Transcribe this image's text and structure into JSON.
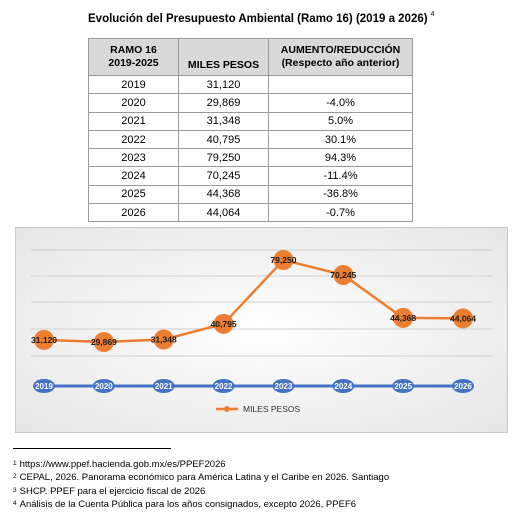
{
  "title": {
    "text": "Evolución del Presupuesto Ambiental (Ramo 16) (2019 a 2026)",
    "note_ref": "4"
  },
  "table": {
    "headers": [
      [
        "RAMO 16",
        "2019-2025"
      ],
      [
        "MILES PESOS"
      ],
      [
        "AUMENTO/REDUCCIÓN",
        "(Respecto año anterior)"
      ]
    ],
    "rows": [
      [
        "2019",
        "31,120",
        ""
      ],
      [
        "2020",
        "29,869",
        "-4.0%"
      ],
      [
        "2021",
        "31,348",
        "5.0%"
      ],
      [
        "2022",
        "40,795",
        "30.1%"
      ],
      [
        "2023",
        "79,250",
        "94.3%"
      ],
      [
        "2024",
        "70,245",
        "-11.4%"
      ],
      [
        "2025",
        "44,368",
        "-36.8%"
      ],
      [
        "2026",
        "44,064",
        "-0.7%"
      ]
    ]
  },
  "chart_data": {
    "type": "line",
    "categories": [
      "2019",
      "2020",
      "2021",
      "2022",
      "2023",
      "2024",
      "2025",
      "2026"
    ],
    "series": [
      {
        "name": "MILES PESOS",
        "values": [
          31120,
          29869,
          31348,
          40795,
          79250,
          70245,
          44368,
          44064
        ]
      }
    ],
    "value_labels": [
      "31,120",
      "29,869",
      "31,348",
      "40,795",
      "79,250",
      "70,245",
      "44,368",
      "44,064"
    ],
    "legend": "bottom",
    "grid": true,
    "colors": {
      "line": "#ED7D31",
      "baseline": "#4472C4",
      "marker": "#ED7D31"
    }
  },
  "footnotes": [
    {
      "num": "1",
      "text": "https://www.ppef.hacienda.gob.mx/es/PPEF2026"
    },
    {
      "num": "2",
      "text": "CEPAL, 2026. Panorama económico para América Latina y el Caribe en 2026. Santiago"
    },
    {
      "num": "3",
      "text": "SHCP. PPEF para el ejercicio fiscal de 2026"
    },
    {
      "num": "4",
      "text": "Análisis de la Cuenta Pública para los años consignados, excepto 2026, PPEF6"
    }
  ]
}
